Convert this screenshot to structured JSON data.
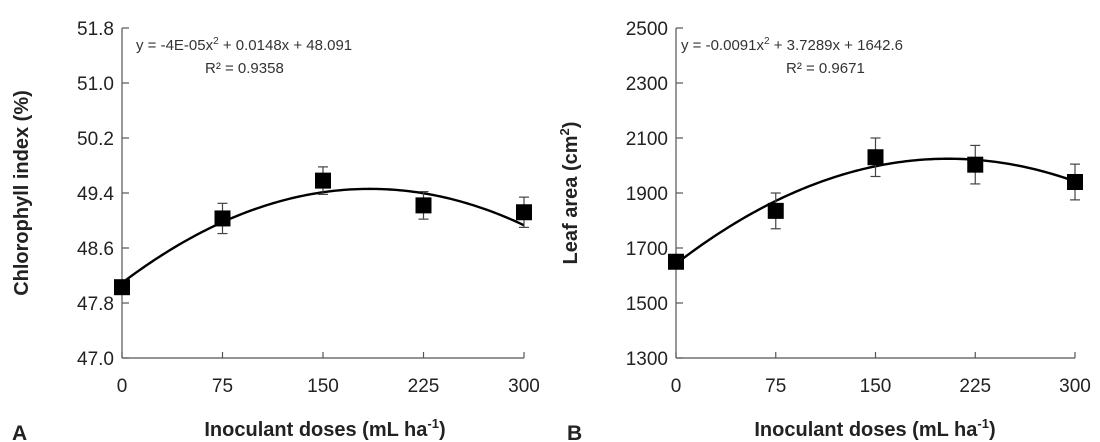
{
  "chart_data": [
    {
      "type": "scatter",
      "panel_label": "A",
      "xlabel": "Inoculant doses (mL ha",
      "xlabel_sup": "-1",
      "xlabel_end": ")",
      "ylabel": "Chlorophyll index (%)",
      "ylabel_sup": "",
      "ylabel_end": "",
      "xlim": [
        0,
        300
      ],
      "ylim": [
        47.0,
        51.8
      ],
      "x_ticks": [
        "0",
        "75",
        "150",
        "225",
        "300"
      ],
      "y_ticks": [
        "47.0",
        "47.8",
        "48.6",
        "49.4",
        "50.2",
        "51.0",
        "51.8"
      ],
      "x": [
        0,
        75,
        150,
        225,
        300
      ],
      "y": [
        48.03,
        49.03,
        49.58,
        49.22,
        49.12
      ],
      "error": [
        0.0,
        0.22,
        0.2,
        0.2,
        0.22
      ],
      "trendline": {
        "coefficients": [
          -4e-05,
          0.0148,
          48.091
        ],
        "equation": "y = -4E-05x",
        "equation_sup": "2",
        "equation_rest": "  + 0.0148x  + 48.091",
        "r2": "R² = 0.9358"
      },
      "grid": false
    },
    {
      "type": "scatter",
      "panel_label": "B",
      "xlabel": "Inoculant doses (mL ha",
      "xlabel_sup": "-1",
      "xlabel_end": ")",
      "ylabel": "Leaf area (cm",
      "ylabel_sup": "2",
      "ylabel_end": ")",
      "xlim": [
        0,
        300
      ],
      "ylim": [
        1300,
        2500
      ],
      "x_ticks": [
        "0",
        "75",
        "150",
        "225",
        "300"
      ],
      "y_ticks": [
        "1300",
        "1500",
        "1700",
        "1900",
        "2100",
        "2300",
        "2500"
      ],
      "x": [
        0,
        75,
        150,
        225,
        300
      ],
      "y": [
        1650,
        1835,
        2030,
        2003,
        1940
      ],
      "error": [
        0,
        65,
        70,
        70,
        65
      ],
      "trendline": {
        "coefficients": [
          -0.0091,
          3.7289,
          1642.6
        ],
        "equation": "y = -0.0091x",
        "equation_sup": "2",
        "equation_rest": "  + 3.7289x  + 1642.6",
        "r2": "R² = 0.9671"
      },
      "grid": false
    }
  ]
}
